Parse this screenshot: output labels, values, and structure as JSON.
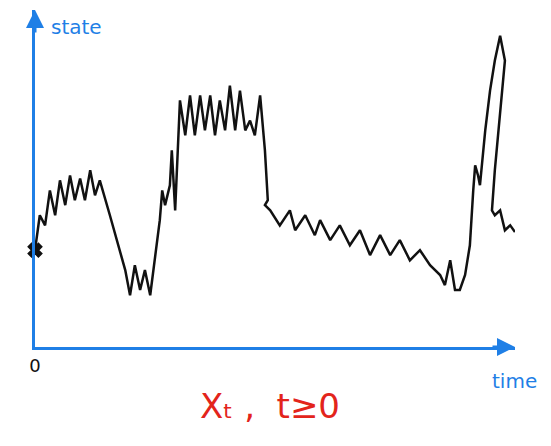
{
  "chart_data": {
    "type": "line",
    "xlabel": "time",
    "ylabel": "state",
    "annotation": "Xₜ ,  t≥0",
    "x": [
      0,
      1.0,
      2.1,
      3.1,
      4.2,
      5.2,
      6.3,
      7.3,
      8.3,
      9.4,
      10.4,
      11.5,
      12.5,
      13.5,
      15.6,
      17.7,
      18.8,
      19.8,
      20.8,
      21.9,
      22.9,
      24.0,
      25.0,
      26.0,
      26.5,
      27.1,
      28.1,
      28.5,
      29.2,
      30.2,
      31.3,
      32.3,
      33.3,
      34.4,
      35.4,
      36.5,
      37.5,
      38.5,
      39.6,
      40.6,
      41.7,
      42.7,
      43.8,
      44.8,
      45.8,
      46.9,
      47.9,
      48.5,
      47.9,
      49.0,
      51.0,
      53.1,
      54.2,
      56.3,
      58.3,
      59.4,
      61.5,
      63.5,
      65.6,
      67.7,
      69.8,
      71.9,
      74.0,
      76.0,
      78.1,
      80.2,
      82.3,
      84.4,
      85.4,
      86.5,
      87.5,
      88.5,
      89.6,
      90.6,
      91.3,
      91.7,
      92.3,
      92.7,
      93.8,
      94.8,
      95.8,
      96.9,
      97.9,
      96.9,
      95.8,
      95.2,
      95.8,
      96.9,
      97.9,
      99.0,
      100
    ],
    "values": [
      31.6,
      43.0,
      39.7,
      51.1,
      43.0,
      54.4,
      46.3,
      56.0,
      47.9,
      55.0,
      47.9,
      57.7,
      49.5,
      54.4,
      43.0,
      31.6,
      25.1,
      16.9,
      26.7,
      18.6,
      25.1,
      16.9,
      30.0,
      41.4,
      51.1,
      46.3,
      52.8,
      64.2,
      44.6,
      80.5,
      69.1,
      82.1,
      69.1,
      82.1,
      70.7,
      82.1,
      69.1,
      80.5,
      70.7,
      85.3,
      70.7,
      83.7,
      70.7,
      73.9,
      69.1,
      82.1,
      64.2,
      47.9,
      46.3,
      44.6,
      39.7,
      44.6,
      38.1,
      43.0,
      36.5,
      41.4,
      34.9,
      39.7,
      33.2,
      38.1,
      30.0,
      36.5,
      30.0,
      34.9,
      28.3,
      31.6,
      26.7,
      23.5,
      20.2,
      28.3,
      18.6,
      18.6,
      23.5,
      33.2,
      51.1,
      59.3,
      56.0,
      52.8,
      70.7,
      83.7,
      93.5,
      101.6,
      93.5,
      77.2,
      57.7,
      44.6,
      43.0,
      44.6,
      38.1,
      39.7,
      37.5
    ],
    "color": "#111111",
    "marker": "x",
    "xlim": [
      0,
      100
    ],
    "ylim": [
      0,
      110
    ],
    "xticks": [
      0
    ],
    "yticks": [],
    "grid": false,
    "tick_labels": "x"
  }
}
